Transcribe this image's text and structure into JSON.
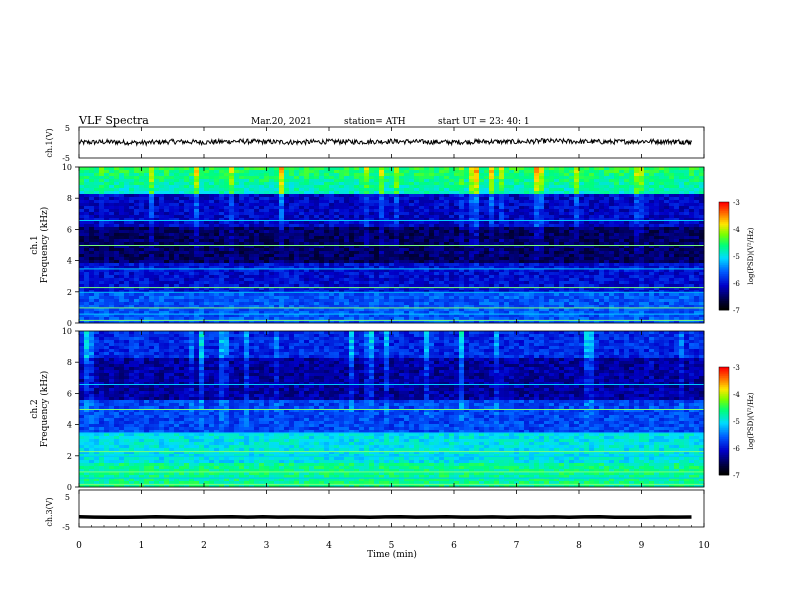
{
  "header": {
    "title": "VLF  Spectra",
    "date": "Mar.20, 2021",
    "station": "station= ATH",
    "start": "start  UT  =    23: 40: 1"
  },
  "chart_data": [
    {
      "type": "line",
      "panel": "ch1-waveform",
      "ylabel": "ch.1(V)",
      "ylim": [
        -5,
        5
      ],
      "yticks": [
        "5",
        "-5"
      ],
      "xlim": [
        0,
        10
      ],
      "x": [
        0.0,
        0.5,
        1.0,
        1.5,
        2.0,
        2.5,
        3.0,
        3.5,
        4.0,
        4.5,
        5.0,
        5.5,
        6.0,
        6.5,
        7.0,
        7.5,
        8.0,
        8.5,
        9.0,
        9.5,
        9.8
      ],
      "values": [
        0.0,
        0.2,
        -0.1,
        0.3,
        0.1,
        0.4,
        0.2,
        0.1,
        0.3,
        0.2,
        0.4,
        0.2,
        0.1,
        0.3,
        0.2,
        0.5,
        0.3,
        0.2,
        0.4,
        0.3,
        0.2
      ]
    },
    {
      "type": "heatmap",
      "panel": "ch1-spectrogram",
      "ylabel_channel": "ch.1",
      "ylabel": "Frequency  (kHz)",
      "ylim": [
        0,
        10
      ],
      "yticks": [
        "0",
        "2",
        "4",
        "6",
        "8",
        "10"
      ],
      "xlim": [
        0,
        10
      ],
      "colorbar": {
        "label": "log(PSD)(V²/Hz)",
        "range": [
          -7,
          -3
        ],
        "ticks": [
          "-3",
          "-4",
          "-5",
          "-6",
          "-7"
        ]
      }
    },
    {
      "type": "heatmap",
      "panel": "ch2-spectrogram",
      "ylabel_channel": "ch.2",
      "ylabel": "Frequency  (kHz)",
      "ylim": [
        0,
        10
      ],
      "yticks": [
        "0",
        "2",
        "4",
        "6",
        "8",
        "10"
      ],
      "xlim": [
        0,
        10
      ],
      "colorbar": {
        "label": "log(PSD)(V²/Hz)",
        "range": [
          -7,
          -3
        ],
        "ticks": [
          "-3",
          "-4",
          "-5",
          "-6",
          "-7"
        ]
      }
    },
    {
      "type": "line",
      "panel": "ch3-waveform",
      "ylabel": "ch.3(V)",
      "ylim": [
        -5,
        5
      ],
      "yticks": [
        "5",
        "-5"
      ],
      "xlim": [
        0,
        10
      ],
      "x": [
        0.0,
        9.8
      ],
      "values": [
        -2.3,
        -2.3
      ]
    }
  ],
  "xaxis": {
    "label": "Time  (min)",
    "ticks": [
      "0",
      "1",
      "2",
      "3",
      "4",
      "5",
      "6",
      "7",
      "8",
      "9",
      "10"
    ]
  }
}
